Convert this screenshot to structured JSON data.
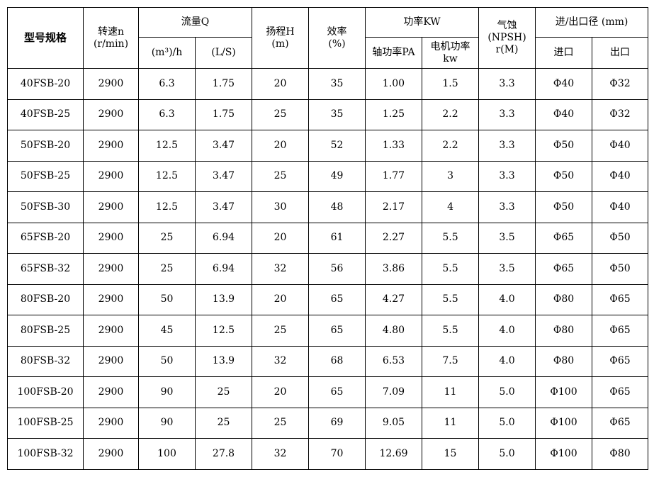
{
  "table": {
    "header": [
      {
        "lines": [
          "型号规格"
        ]
      },
      {
        "lines": [
          "转速n",
          "(r/min)"
        ]
      },
      {
        "lines": [
          "流量Q"
        ]
      },
      {
        "lines": [
          "扬程H",
          "(m)"
        ]
      },
      {
        "lines": [
          "效率",
          "(%)"
        ]
      },
      {
        "lines": [
          "功率KW"
        ]
      },
      {
        "lines": [
          "气蚀",
          "(NPSH)",
          "r(M)"
        ]
      },
      {
        "lines": [
          "进/出口径 (mm)"
        ]
      }
    ],
    "subheader": [
      {
        "lines": [
          "(m³)/h"
        ]
      },
      {
        "lines": [
          "(L/S)"
        ]
      },
      {
        "lines": [
          "轴功率PA"
        ]
      },
      {
        "lines": [
          "电机功率",
          "kw"
        ]
      },
      {
        "lines": [
          "进口"
        ]
      },
      {
        "lines": [
          "出口"
        ]
      }
    ],
    "rows": [
      [
        "40FSB-20",
        "2900",
        "6.3",
        "1.75",
        "20",
        "35",
        "1.00",
        "1.5",
        "3.3",
        "Φ40",
        "Φ32"
      ],
      [
        "40FSB-25",
        "2900",
        "6.3",
        "1.75",
        "25",
        "35",
        "1.25",
        "2.2",
        "3.3",
        "Φ40",
        "Φ32"
      ],
      [
        "50FSB-20",
        "2900",
        "12.5",
        "3.47",
        "20",
        "52",
        "1.33",
        "2.2",
        "3.3",
        "Φ50",
        "Φ40"
      ],
      [
        "50FSB-25",
        "2900",
        "12.5",
        "3.47",
        "25",
        "49",
        "1.77",
        "3",
        "3.3",
        "Φ50",
        "Φ40"
      ],
      [
        "50FSB-30",
        "2900",
        "12.5",
        "3.47",
        "30",
        "48",
        "2.17",
        "4",
        "3.3",
        "Φ50",
        "Φ40"
      ],
      [
        "65FSB-20",
        "2900",
        "25",
        "6.94",
        "20",
        "61",
        "2.27",
        "5.5",
        "3.5",
        "Φ65",
        "Φ50"
      ],
      [
        "65FSB-32",
        "2900",
        "25",
        "6.94",
        "32",
        "56",
        "3.86",
        "5.5",
        "3.5",
        "Φ65",
        "Φ50"
      ],
      [
        "80FSB-20",
        "2900",
        "50",
        "13.9",
        "20",
        "65",
        "4.27",
        "5.5",
        "4.0",
        "Φ80",
        "Φ65"
      ],
      [
        "80FSB-25",
        "2900",
        "45",
        "12.5",
        "25",
        "65",
        "4.80",
        "5.5",
        "4.0",
        "Φ80",
        "Φ65"
      ],
      [
        "80FSB-32",
        "2900",
        "50",
        "13.9",
        "32",
        "68",
        "6.53",
        "7.5",
        "4.0",
        "Φ80",
        "Φ65"
      ],
      [
        "100FSB-20",
        "2900",
        "90",
        "25",
        "20",
        "65",
        "7.09",
        "11",
        "5.0",
        "Φ100",
        "Φ65"
      ],
      [
        "100FSB-25",
        "2900",
        "90",
        "25",
        "25",
        "69",
        "9.05",
        "11",
        "5.0",
        "Φ100",
        "Φ65"
      ],
      [
        "100FSB-32",
        "2900",
        "100",
        "27.8",
        "32",
        "70",
        "12.69",
        "15",
        "5.0",
        "Φ100",
        "Φ80"
      ]
    ]
  }
}
